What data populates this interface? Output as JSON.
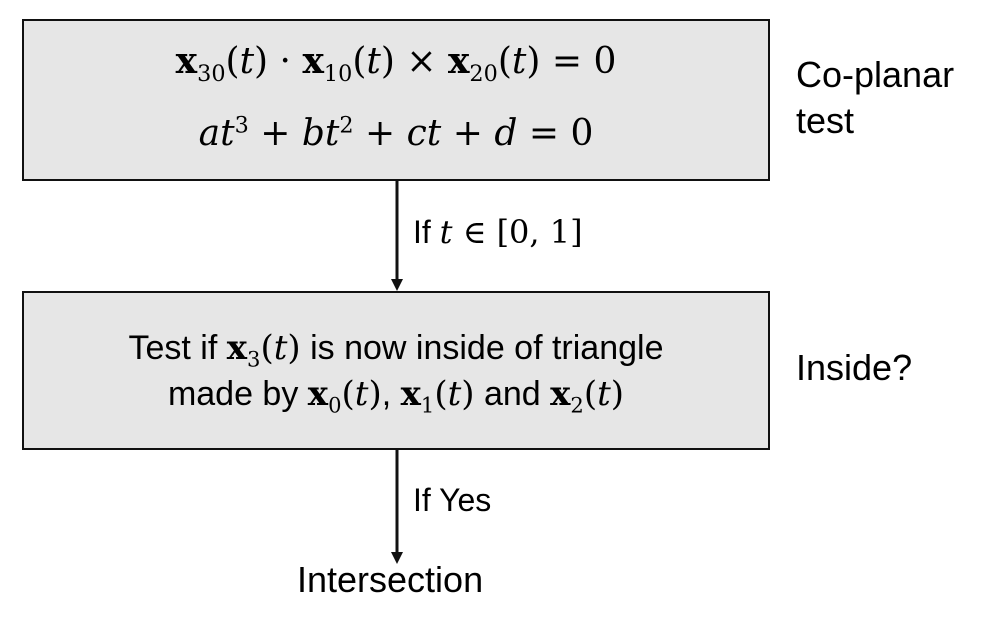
{
  "box1": {
    "eq1": {
      "x30": "x",
      "x30_sub": "30",
      "x10": "x",
      "x10_sub": "10",
      "x20": "x",
      "x20_sub": "20",
      "t": "t",
      "open": "(",
      "close": ")",
      "dot": " · ",
      "times": " × ",
      "equals": " = ",
      "zero": "0"
    },
    "eq2": {
      "a": "a",
      "b": "b",
      "c": "c",
      "d": "d",
      "t": "t",
      "exp3": "3",
      "exp2": "2",
      "plus": " + ",
      "equals": " = ",
      "zero": "0"
    }
  },
  "coplanar_label": "Co-planar\ntest",
  "condition1": {
    "prefix": "If ",
    "t": "t",
    "in": " ∈ ",
    "interval": "[0,  1]"
  },
  "box2": {
    "line1": {
      "pre": "Test if ",
      "x": "x",
      "x_sub": "3",
      "t": "t",
      "post": " is now inside of triangle"
    },
    "line2": {
      "pre": "made by ",
      "x0": "x",
      "x0_sub": "0",
      "x1": "x",
      "x1_sub": "1",
      "x2": "x",
      "x2_sub": "2",
      "t": "t",
      "comma": ", ",
      "and": " and "
    }
  },
  "inside_label": "Inside?",
  "condition2": "If Yes",
  "result": "Intersection"
}
